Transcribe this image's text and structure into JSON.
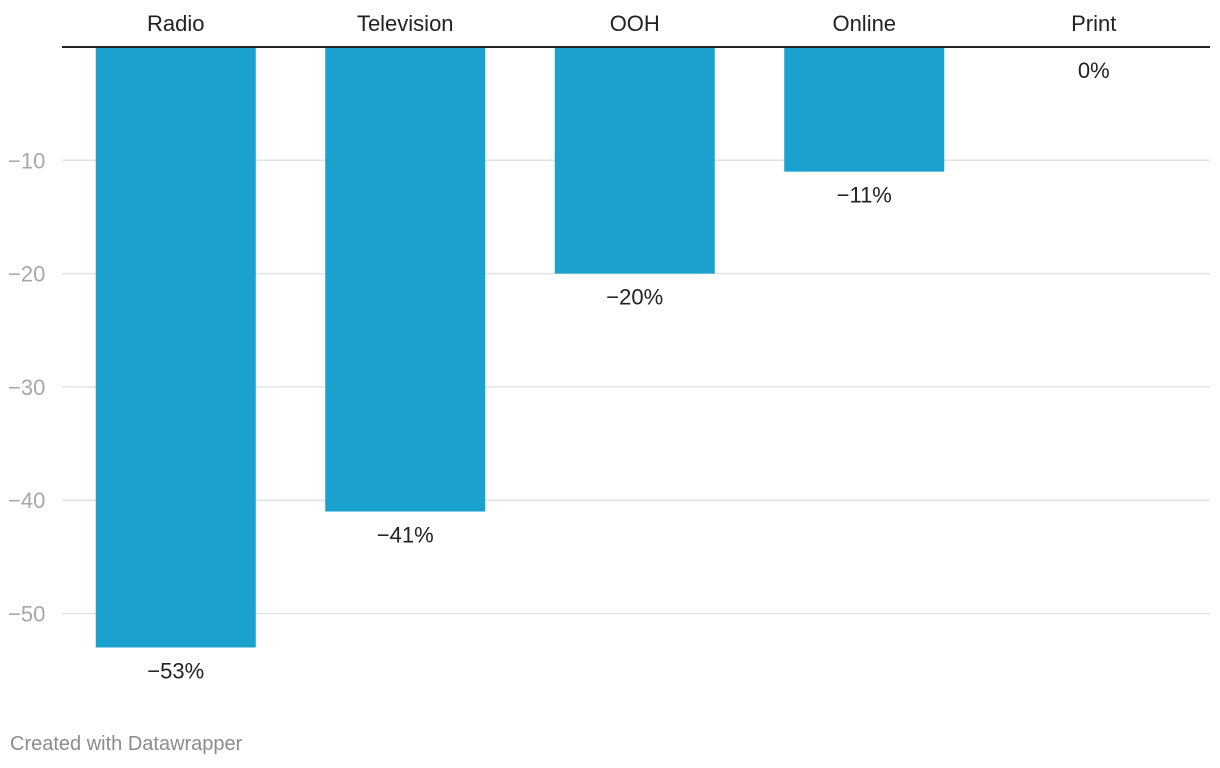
{
  "chart_data": {
    "type": "bar",
    "categories": [
      "Radio",
      "Television",
      "OOH",
      "Online",
      "Print"
    ],
    "values": [
      -53,
      -41,
      -20,
      -11,
      0
    ],
    "value_labels": [
      "−53%",
      "−41%",
      "−20%",
      "−11%",
      "0%"
    ],
    "y_ticks": [
      -10,
      -20,
      -30,
      -40,
      -50
    ],
    "y_tick_labels": [
      "−10",
      "−20",
      "−30",
      "−40",
      "−50"
    ],
    "ylim": [
      -53,
      0
    ],
    "grid": true,
    "bar_color": "#1aa1cd",
    "category_axis_position": "top"
  },
  "credit": "Created with Datawrapper"
}
